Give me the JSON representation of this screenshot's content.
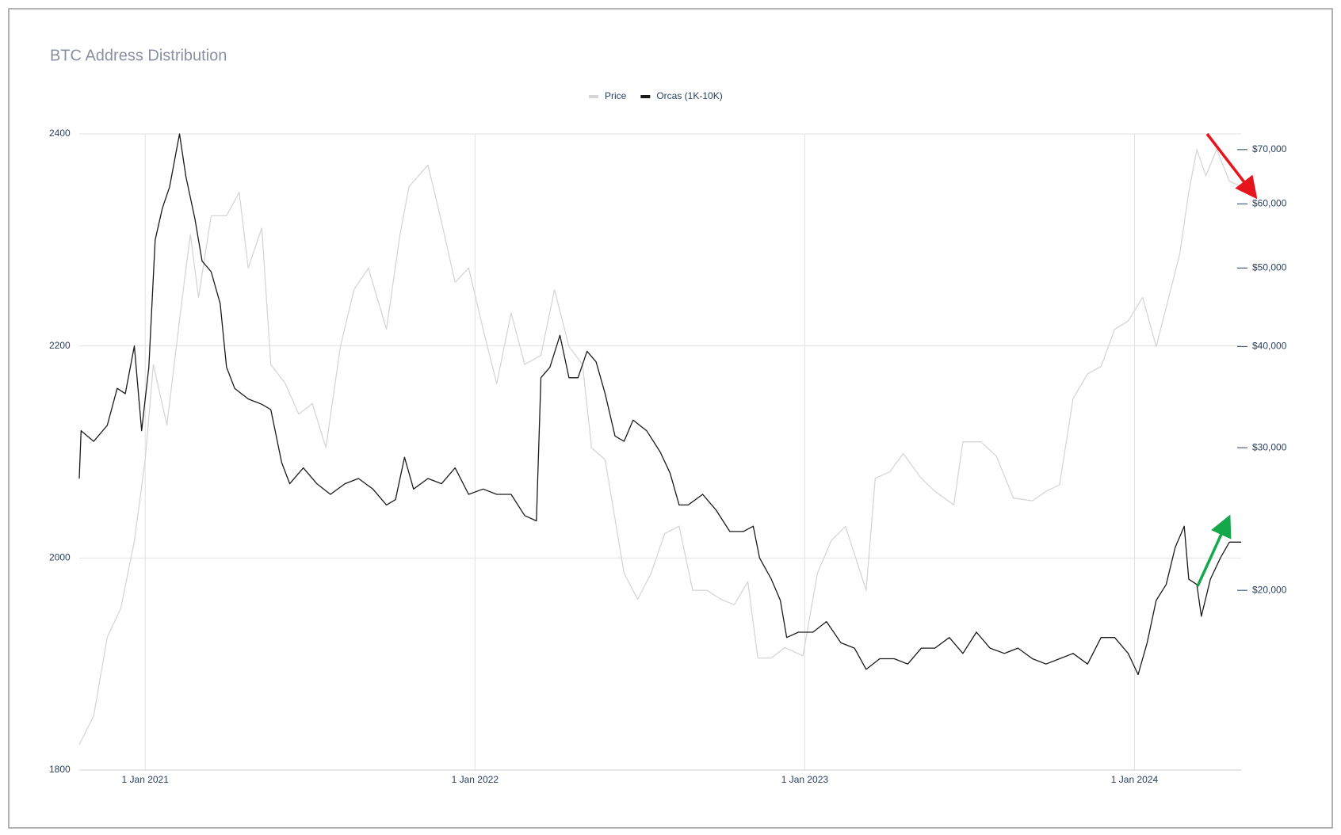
{
  "chart_data": {
    "type": "line",
    "title": "BTC Address Distribution",
    "legend": "top-center",
    "grid": true,
    "ylim": [
      1800,
      2400
    ],
    "yticks": [
      1800,
      2000,
      2200,
      2400
    ],
    "y2lim": [
      12000,
      73200
    ],
    "y2_log_scale": true,
    "y2ticks": [
      {
        "value": 20000,
        "label": "$20,000"
      },
      {
        "value": 30000,
        "label": "$30,000"
      },
      {
        "value": 40000,
        "label": "$40,000"
      },
      {
        "value": 50000,
        "label": "$50,000"
      },
      {
        "value": 60000,
        "label": "$60,000"
      },
      {
        "value": 70000,
        "label": "$70,000"
      }
    ],
    "xlim": [
      "2020-10-20",
      "2024-04-28"
    ],
    "xticks": [
      {
        "value": "2021-01-01",
        "label": "1 Jan 2021"
      },
      {
        "value": "2022-01-01",
        "label": "1 Jan 2022"
      },
      {
        "value": "2023-01-01",
        "label": "1 Jan 2023"
      },
      {
        "value": "2024-01-01",
        "label": "1 Jan 2024"
      }
    ],
    "series": [
      {
        "name": "Price",
        "color": "#d6d6d6",
        "axis": "y2",
        "x": [
          "2020-10-20",
          "2020-11-05",
          "2020-11-20",
          "2020-12-05",
          "2020-12-20",
          "2021-01-01",
          "2021-01-10",
          "2021-01-25",
          "2021-02-10",
          "2021-02-20",
          "2021-03-01",
          "2021-03-15",
          "2021-04-01",
          "2021-04-15",
          "2021-04-25",
          "2021-05-10",
          "2021-05-20",
          "2021-06-05",
          "2021-06-20",
          "2021-07-05",
          "2021-07-20",
          "2021-08-05",
          "2021-08-20",
          "2021-09-05",
          "2021-09-25",
          "2021-10-10",
          "2021-10-20",
          "2021-11-10",
          "2021-11-25",
          "2021-12-10",
          "2021-12-25",
          "2022-01-10",
          "2022-01-25",
          "2022-02-10",
          "2022-02-25",
          "2022-03-15",
          "2022-03-30",
          "2022-04-15",
          "2022-04-30",
          "2022-05-10",
          "2022-05-25",
          "2022-06-15",
          "2022-06-30",
          "2022-07-15",
          "2022-07-30",
          "2022-08-15",
          "2022-08-30",
          "2022-09-15",
          "2022-09-30",
          "2022-10-15",
          "2022-10-30",
          "2022-11-10",
          "2022-11-25",
          "2022-12-10",
          "2022-12-30",
          "2023-01-15",
          "2023-01-30",
          "2023-02-15",
          "2023-03-10",
          "2023-03-20",
          "2023-04-05",
          "2023-04-20",
          "2023-05-10",
          "2023-05-25",
          "2023-06-15",
          "2023-06-25",
          "2023-07-15",
          "2023-08-01",
          "2023-08-20",
          "2023-09-10",
          "2023-09-25",
          "2023-10-10",
          "2023-10-25",
          "2023-11-10",
          "2023-11-25",
          "2023-12-10",
          "2023-12-25",
          "2024-01-10",
          "2024-01-25",
          "2024-02-10",
          "2024-02-20",
          "2024-03-01",
          "2024-03-10",
          "2024-03-20",
          "2024-04-01",
          "2024-04-15",
          "2024-04-28"
        ],
        "values": [
          12900,
          14000,
          17500,
          19000,
          23000,
          29000,
          38000,
          32000,
          45000,
          55000,
          46000,
          58000,
          58000,
          62000,
          50000,
          56000,
          38000,
          36000,
          33000,
          34000,
          30000,
          40000,
          47000,
          50000,
          42000,
          55000,
          63000,
          67000,
          57000,
          48000,
          50000,
          42000,
          36000,
          44000,
          38000,
          39000,
          47000,
          40000,
          38000,
          30000,
          29000,
          21000,
          19500,
          21000,
          23500,
          24000,
          20000,
          20000,
          19500,
          19200,
          20500,
          16500,
          16500,
          17000,
          16600,
          21000,
          23000,
          24000,
          20000,
          27500,
          28000,
          29500,
          27500,
          26500,
          25500,
          30500,
          30500,
          29300,
          26000,
          25800,
          26500,
          27000,
          34500,
          37000,
          37800,
          42000,
          43000,
          46000,
          40000,
          47000,
          52000,
          62000,
          70000,
          65000,
          70000,
          64000,
          63000
        ]
      },
      {
        "name": "Orcas (1K-10K)",
        "color": "#1a1a1a",
        "x": [
          "2020-10-20",
          "2020-10-22",
          "2020-11-05",
          "2020-11-20",
          "2020-12-01",
          "2020-12-10",
          "2020-12-20",
          "2020-12-28",
          "2021-01-05",
          "2021-01-12",
          "2021-01-20",
          "2021-01-28",
          "2021-02-08",
          "2021-02-15",
          "2021-02-25",
          "2021-03-05",
          "2021-03-15",
          "2021-03-25",
          "2021-04-01",
          "2021-04-10",
          "2021-04-25",
          "2021-05-10",
          "2021-05-20",
          "2021-06-01",
          "2021-06-10",
          "2021-06-25",
          "2021-07-10",
          "2021-07-25",
          "2021-08-10",
          "2021-08-25",
          "2021-09-10",
          "2021-09-25",
          "2021-10-05",
          "2021-10-15",
          "2021-10-25",
          "2021-11-10",
          "2021-11-25",
          "2021-12-10",
          "2021-12-25",
          "2022-01-10",
          "2022-01-25",
          "2022-02-10",
          "2022-02-25",
          "2022-03-10",
          "2022-03-15",
          "2022-03-25",
          "2022-04-05",
          "2022-04-15",
          "2022-04-25",
          "2022-05-05",
          "2022-05-15",
          "2022-05-25",
          "2022-06-05",
          "2022-06-15",
          "2022-06-25",
          "2022-07-10",
          "2022-07-25",
          "2022-08-05",
          "2022-08-15",
          "2022-08-25",
          "2022-09-10",
          "2022-09-25",
          "2022-10-10",
          "2022-10-25",
          "2022-11-05",
          "2022-11-12",
          "2022-11-25",
          "2022-12-05",
          "2022-12-12",
          "2022-12-25",
          "2023-01-10",
          "2023-01-25",
          "2023-02-10",
          "2023-02-25",
          "2023-03-10",
          "2023-03-25",
          "2023-04-10",
          "2023-04-25",
          "2023-05-10",
          "2023-05-25",
          "2023-06-10",
          "2023-06-25",
          "2023-07-10",
          "2023-07-25",
          "2023-08-10",
          "2023-08-25",
          "2023-09-10",
          "2023-09-25",
          "2023-10-10",
          "2023-10-25",
          "2023-11-10",
          "2023-11-25",
          "2023-12-10",
          "2023-12-25",
          "2024-01-05",
          "2024-01-15",
          "2024-01-25",
          "2024-02-05",
          "2024-02-15",
          "2024-02-25",
          "2024-03-01",
          "2024-03-10",
          "2024-03-15",
          "2024-03-25",
          "2024-04-05",
          "2024-04-15",
          "2024-04-28"
        ],
        "values": [
          2075,
          2120,
          2110,
          2125,
          2160,
          2155,
          2200,
          2120,
          2180,
          2300,
          2330,
          2350,
          2400,
          2360,
          2320,
          2280,
          2270,
          2240,
          2180,
          2160,
          2150,
          2145,
          2140,
          2090,
          2070,
          2085,
          2070,
          2060,
          2070,
          2075,
          2065,
          2050,
          2055,
          2095,
          2065,
          2075,
          2070,
          2085,
          2060,
          2065,
          2060,
          2060,
          2040,
          2035,
          2170,
          2180,
          2210,
          2170,
          2170,
          2195,
          2185,
          2155,
          2115,
          2110,
          2130,
          2120,
          2100,
          2080,
          2050,
          2050,
          2060,
          2045,
          2025,
          2025,
          2030,
          2000,
          1980,
          1960,
          1925,
          1930,
          1930,
          1940,
          1920,
          1915,
          1895,
          1905,
          1905,
          1900,
          1915,
          1915,
          1925,
          1910,
          1930,
          1915,
          1910,
          1915,
          1905,
          1900,
          1905,
          1910,
          1900,
          1925,
          1925,
          1910,
          1890,
          1920,
          1960,
          1975,
          2010,
          2030,
          1980,
          1975,
          1945,
          1980,
          2000,
          2015,
          2015
        ]
      }
    ]
  }
}
